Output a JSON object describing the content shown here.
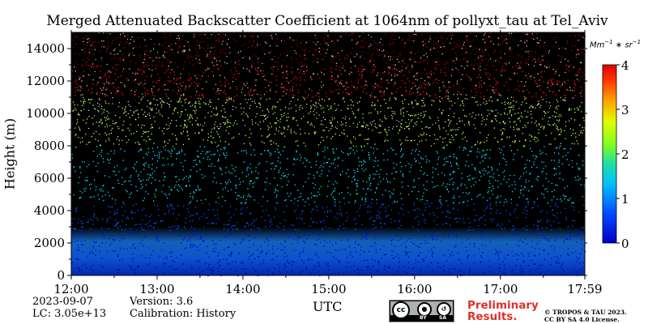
{
  "chart_data": {
    "type": "heatmap",
    "title": "Merged Attenuated Backscatter Coefficient at 1064nm of pollyxt_tau at Tel_Aviv",
    "xlabel": "UTC",
    "ylabel": "Height (m)",
    "x_ticks": [
      "12:00",
      "13:00",
      "14:00",
      "15:00",
      "16:00",
      "17:00",
      "17:59"
    ],
    "x_range": [
      "12:00",
      "17:59"
    ],
    "y_ticks": [
      0,
      2000,
      4000,
      6000,
      8000,
      10000,
      12000,
      14000
    ],
    "ylim": [
      0,
      15000
    ],
    "colorbar": {
      "label": "Mm^-1 * sr^-1",
      "ticks": [
        0,
        1,
        2,
        3,
        4
      ],
      "range": [
        0,
        4
      ],
      "colormap": "jet"
    },
    "background_color": "#000000",
    "layers": [
      {
        "height_range_m": [
          0,
          1500
        ],
        "typical_value": 0.3
      },
      {
        "height_range_m": [
          1500,
          2800
        ],
        "typical_value": 0.5
      },
      {
        "height_range_m": [
          2800,
          4500
        ],
        "typical_value": 0.8
      },
      {
        "height_range_m": [
          4500,
          8000
        ],
        "typical_value": 1.5
      },
      {
        "height_range_m": [
          8000,
          11000
        ],
        "typical_value": 2.4
      },
      {
        "height_range_m": [
          11000,
          13000
        ],
        "typical_value": 3.5
      },
      {
        "height_range_m": [
          13000,
          15000
        ],
        "typical_value": 4.0
      }
    ]
  },
  "footer": {
    "date": "2023-09-07",
    "lc": "LC: 3.05e+13",
    "version": "Version: 3.6",
    "calibration": "Calibration: History",
    "preliminary_line1": "Preliminary",
    "preliminary_line2": "Results.",
    "copyright_line1": "© TROPOS & TAU 2023.",
    "copyright_line2": "CC BY SA 4.0 License.",
    "license_badge": {
      "cc": "cc",
      "by": "BY",
      "sa": "SA"
    }
  }
}
